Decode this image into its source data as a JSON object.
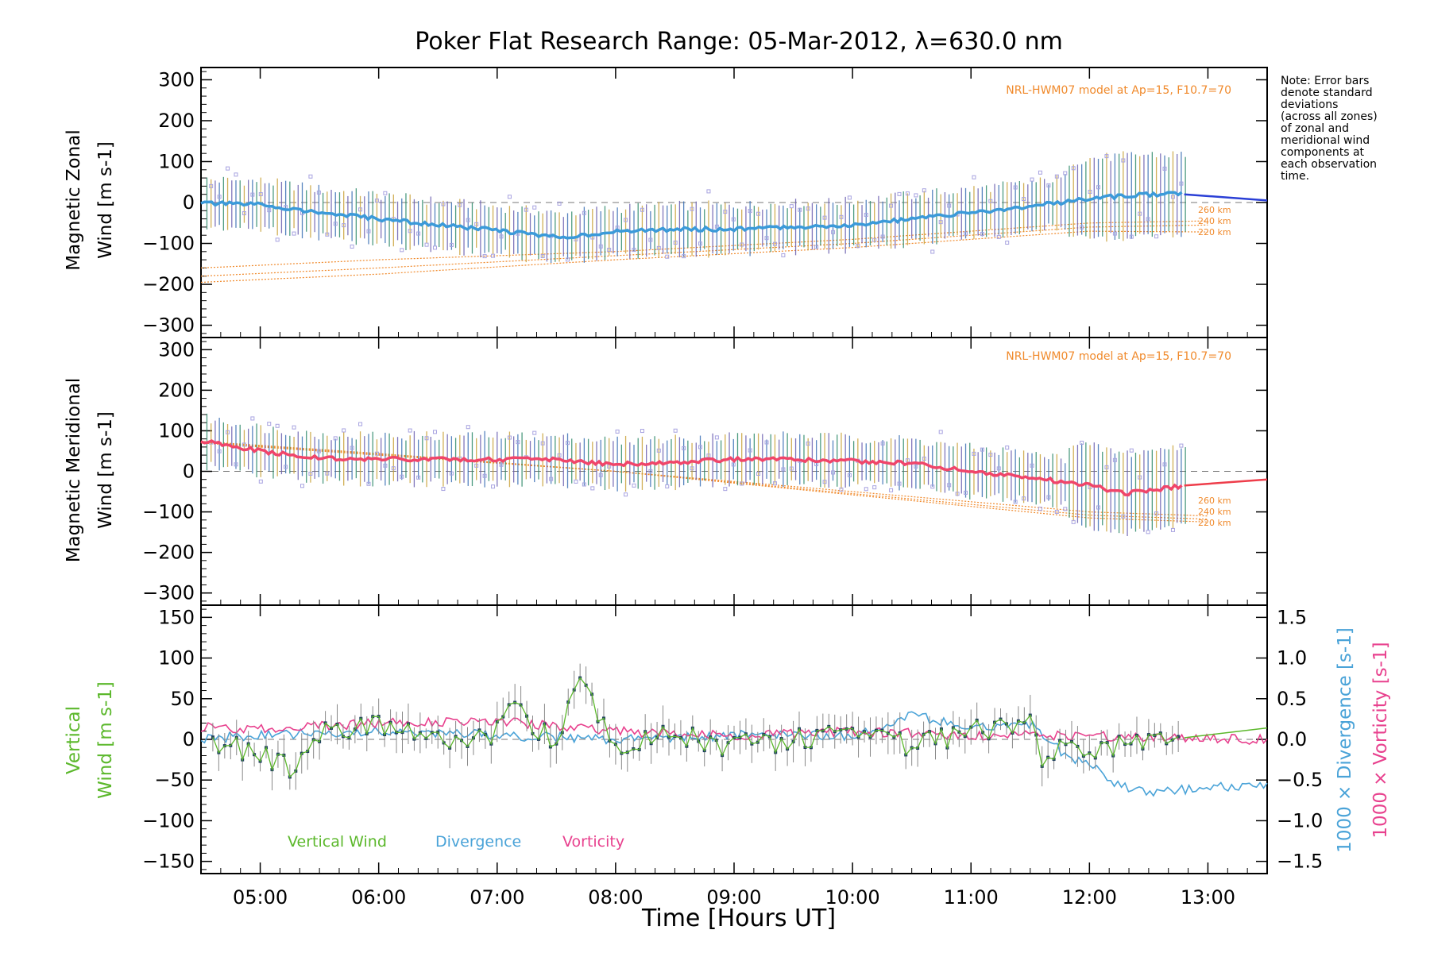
{
  "title": "Poker Flat Research Range: 05-Mar-2012, λ=630.0 nm",
  "note_lines": [
    "Note: Error bars",
    "denote standard",
    "deviations",
    "(across all zones)",
    "of zonal and",
    "meridional wind",
    "components at",
    "each observation",
    "time."
  ],
  "model_label": "NRL-HWM07 model at Ap=15, F10.7=70",
  "alt_labels": [
    "260 km",
    "240 km",
    "220 km"
  ],
  "xlabel": "Time [Hours UT]",
  "x_ticks": [
    "05:00",
    "06:00",
    "07:00",
    "08:00",
    "09:00",
    "10:00",
    "11:00",
    "12:00",
    "13:00"
  ],
  "colors": {
    "zonal": "#3b9ad9",
    "meridional": "#f0456a",
    "vertical": "#5cb82c",
    "divergence": "#4aa3d8",
    "vorticity": "#e8418e",
    "model": "#f08a2c",
    "scatter": "#a8a3e0"
  },
  "chart_data": [
    {
      "type": "line",
      "panel": "zonal",
      "ylabel_lines": [
        "Magnetic Zonal",
        "Wind [m s-1]"
      ],
      "ylim": [
        -330,
        330
      ],
      "y_ticks": [
        300,
        200,
        100,
        0,
        -100,
        -200,
        -300
      ],
      "xlim": [
        4.5,
        13.5
      ],
      "series": [
        {
          "x": [
            4.5,
            5.0,
            5.5,
            6.0,
            6.5,
            7.0,
            7.5,
            8.0,
            8.5,
            9.0,
            9.5,
            10.0,
            10.5,
            11.0,
            11.5,
            12.0,
            12.5,
            12.8
          ],
          "values": [
            -2,
            -5,
            -25,
            -40,
            -55,
            -68,
            -85,
            -72,
            -65,
            -65,
            -60,
            -55,
            -40,
            -25,
            -10,
            10,
            20,
            20
          ]
        },
        {
          "x": [
            12.8,
            13.5
          ],
          "values": [
            20,
            5
          ]
        },
        {
          "x": [
            4.5,
            6.0,
            8.0,
            10.0,
            12.0,
            13.0
          ],
          "values": [
            -160,
            -140,
            -120,
            -90,
            -50,
            -45
          ]
        },
        {
          "x": [
            4.5,
            6.0,
            8.0,
            10.0,
            12.0,
            13.0
          ],
          "values": [
            -180,
            -160,
            -130,
            -100,
            -60,
            -55
          ]
        },
        {
          "x": [
            4.5,
            6.0,
            8.0,
            10.0,
            12.0,
            13.0
          ],
          "values": [
            -195,
            -175,
            -140,
            -110,
            -70,
            -72
          ]
        }
      ]
    },
    {
      "type": "line",
      "panel": "meridional",
      "ylabel_lines": [
        "Magnetic Meridional",
        "Wind [m s-1]"
      ],
      "ylim": [
        -330,
        330
      ],
      "y_ticks": [
        300,
        200,
        100,
        0,
        -100,
        -200,
        -300
      ],
      "xlim": [
        4.5,
        13.5
      ],
      "series": [
        {
          "x": [
            4.5,
            5.0,
            5.5,
            6.0,
            6.5,
            7.0,
            7.5,
            8.0,
            8.5,
            9.0,
            9.5,
            10.0,
            10.5,
            11.0,
            11.5,
            12.0,
            12.3,
            12.8
          ],
          "values": [
            75,
            50,
            32,
            30,
            30,
            30,
            28,
            18,
            22,
            30,
            30,
            25,
            20,
            0,
            -15,
            -35,
            -55,
            -35
          ]
        },
        {
          "x": [
            12.8,
            13.5
          ],
          "values": [
            -35,
            -20
          ]
        },
        {
          "x": [
            4.5,
            6.0,
            8.0,
            10.0,
            12.0,
            13.0
          ],
          "values": [
            70,
            40,
            0,
            -50,
            -100,
            -110
          ]
        },
        {
          "x": [
            4.5,
            6.0,
            8.0,
            10.0,
            12.0,
            13.0
          ],
          "values": [
            72,
            42,
            0,
            -55,
            -108,
            -118
          ]
        },
        {
          "x": [
            4.5,
            6.0,
            8.0,
            10.0,
            12.0,
            13.0
          ],
          "values": [
            74,
            44,
            0,
            -58,
            -115,
            -125
          ]
        }
      ]
    },
    {
      "type": "line",
      "panel": "vertical",
      "ylabel_lines": [
        "Vertical",
        "Wind [m s-1]"
      ],
      "ylim": [
        -165,
        165
      ],
      "y_ticks": [
        150,
        100,
        50,
        0,
        -50,
        -100,
        -150
      ],
      "right_axis": {
        "ylim": [
          -1.65,
          1.65
        ],
        "ticks": [
          1.5,
          1.0,
          0.5,
          0.0,
          -0.5,
          -1.0,
          -1.5
        ],
        "labels": [
          "1000 × Divergence [s-1]",
          "1000 × Vorticity [s-1]"
        ]
      },
      "xlim": [
        4.5,
        13.5
      ],
      "legend": [
        "Vertical Wind",
        "Divergence",
        "Vorticity"
      ],
      "series": [
        {
          "name": "Vertical Wind",
          "x": [
            4.6,
            5.0,
            5.3,
            5.5,
            6.0,
            6.5,
            7.0,
            7.1,
            7.5,
            7.7,
            8.0,
            8.5,
            9.0,
            9.5,
            10.0,
            10.5,
            11.0,
            11.5,
            11.6,
            12.0,
            12.5,
            12.8
          ],
          "values": [
            0,
            -20,
            -40,
            10,
            15,
            -5,
            10,
            40,
            0,
            75,
            -5,
            10,
            -10,
            0,
            10,
            -10,
            10,
            15,
            -20,
            -10,
            0,
            5
          ]
        },
        {
          "name": "Divergence",
          "x": [
            4.5,
            5.0,
            6.0,
            7.0,
            8.0,
            9.0,
            10.0,
            10.5,
            11.0,
            11.5,
            11.8,
            12.0,
            12.2,
            12.5,
            12.8,
            13.5
          ],
          "values": [
            0.0,
            0.05,
            0.1,
            0.05,
            0.0,
            0.05,
            0.05,
            0.3,
            0.15,
            0.2,
            -0.2,
            -0.3,
            -0.55,
            -0.65,
            -0.62,
            -0.55
          ]
        },
        {
          "name": "Vorticity",
          "x": [
            4.5,
            5.0,
            6.0,
            7.0,
            8.0,
            9.0,
            10.0,
            11.0,
            12.0,
            12.8,
            13.5
          ],
          "values": [
            0.15,
            0.12,
            0.2,
            0.22,
            0.1,
            0.05,
            0.1,
            0.05,
            0.05,
            0.0,
            0.0
          ]
        }
      ]
    }
  ]
}
